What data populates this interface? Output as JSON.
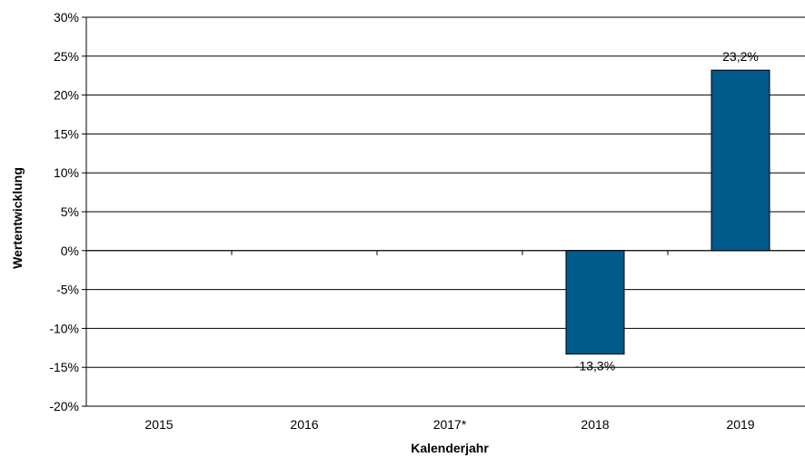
{
  "chart_data": {
    "type": "bar",
    "categories": [
      "2015",
      "2016",
      "2017*",
      "2018",
      "2019"
    ],
    "values": [
      null,
      null,
      null,
      -13.3,
      23.2
    ],
    "data_labels": [
      "",
      "",
      "",
      "-13,3%",
      "23,2%"
    ],
    "xlabel": "Kalenderjahr",
    "ylabel": "Wertentwicklung",
    "ylim": [
      -20,
      30
    ],
    "yticks": [
      30,
      25,
      20,
      15,
      10,
      5,
      0,
      -5,
      -10,
      -15,
      -20
    ],
    "ytick_labels": [
      "30%",
      "25%",
      "20%",
      "15%",
      "10%",
      "5%",
      "0%",
      "-5%",
      "-10%",
      "-15%",
      "-20%"
    ],
    "grid": true,
    "bar_color": "#005a8c",
    "legend": "none"
  }
}
